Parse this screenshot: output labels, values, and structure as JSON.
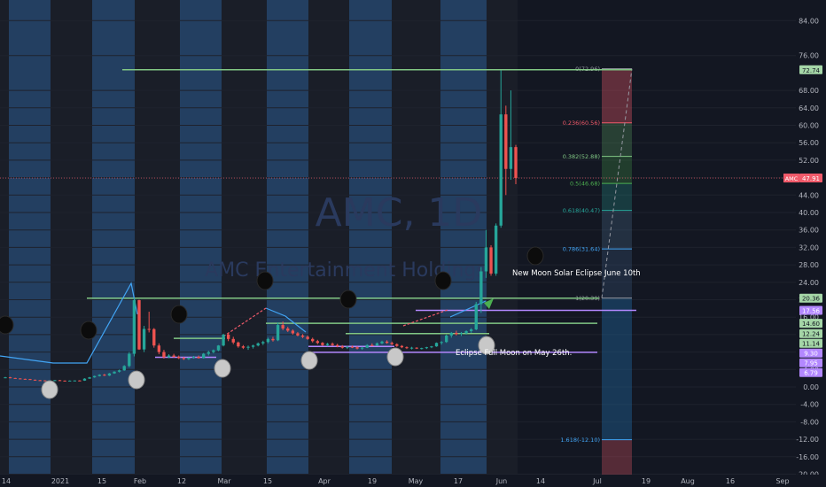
{
  "chart_data": {
    "type": "candlestick",
    "watermark": {
      "ticker": "AMC, 1D",
      "name": "AMC Entertainment Holdings"
    },
    "y_axis": {
      "ticks": [
        "84.00",
        "76.00",
        "68.00",
        "64.00",
        "60.00",
        "56.00",
        "52.00",
        "48.00",
        "44.00",
        "40.00",
        "36.00",
        "32.00",
        "28.00",
        "24.00",
        "20.00",
        "16.00",
        "12.00",
        "8.00",
        "4.00",
        "0.00",
        "-4.00",
        "-8.00",
        "-12.00",
        "-16.00",
        "-20.00"
      ],
      "ylim": [
        -22,
        86
      ]
    },
    "x_axis": {
      "ticks": [
        "14",
        "2021",
        "15",
        "Feb",
        "12",
        "Mar",
        "15",
        "Apr",
        "19",
        "May",
        "17",
        "Jun",
        "14",
        "Jul",
        "19",
        "Aug",
        "16",
        "Sep"
      ]
    },
    "price_badges": [
      {
        "label": "72.74",
        "value": 72.74,
        "color": "#a5d6a7",
        "text_color": "#131722"
      },
      {
        "label": "47.91",
        "value": 47.91,
        "color": "#f05a6a",
        "text_color": "#ffffff"
      },
      {
        "label": "20.36",
        "value": 20.36,
        "color": "#a5d6a7",
        "text_color": "#131722"
      },
      {
        "label": "17.56",
        "value": 17.56,
        "color": "#b388ff",
        "text_color": "#ffffff"
      },
      {
        "label": "14.60",
        "value": 14.6,
        "color": "#a5d6a7",
        "text_color": "#131722"
      },
      {
        "label": "12.24",
        "value": 12.24,
        "color": "#a5d6a7",
        "text_color": "#131722"
      },
      {
        "label": "11.14",
        "value": 11.14,
        "color": "#a5d6a7",
        "text_color": "#131722"
      },
      {
        "label": "9.30",
        "value": 9.3,
        "color": "#b388ff",
        "text_color": "#ffffff"
      },
      {
        "label": "7.95",
        "value": 7.95,
        "color": "#b388ff",
        "text_color": "#ffffff"
      },
      {
        "label": "6.79",
        "value": 6.79,
        "color": "#b388ff",
        "text_color": "#ffffff"
      }
    ],
    "symbol_tag": "AMC",
    "fib_levels": [
      {
        "label": "0(72.96)",
        "value": 72.96,
        "color": "#9598a1"
      },
      {
        "label": "0.236(60.56)",
        "value": 60.56,
        "color": "#f05a6a"
      },
      {
        "label": "0.382(52.88)",
        "value": 52.88,
        "color": "#81c784"
      },
      {
        "label": "0.5(46.68)",
        "value": 46.68,
        "color": "#4caf50"
      },
      {
        "label": "0.618(40.47)",
        "value": 40.47,
        "color": "#26a69a"
      },
      {
        "label": "0.786(31.64)",
        "value": 31.64,
        "color": "#42a5f5"
      },
      {
        "label": "1(20.39)",
        "value": 20.39,
        "color": "#9598a1"
      },
      {
        "label": "1.618(-12.10)",
        "value": -12.1,
        "color": "#42a5f5"
      }
    ],
    "annotations": [
      {
        "text": "New Moon Solar Eclipse June 10th"
      },
      {
        "text": "Eclipse Full Moon on May 26th."
      }
    ],
    "horizontal_levels": [
      {
        "value": 72.74,
        "color": "#81c784"
      },
      {
        "value": 20.36,
        "color": "#81c784"
      },
      {
        "value": 17.56,
        "color": "#b388ff"
      },
      {
        "value": 14.6,
        "color": "#81c784"
      },
      {
        "value": 12.24,
        "color": "#81c784"
      },
      {
        "value": 11.14,
        "color": "#81c784"
      },
      {
        "value": 9.3,
        "color": "#b388ff"
      },
      {
        "value": 7.95,
        "color": "#b388ff"
      },
      {
        "value": 6.79,
        "color": "#b388ff"
      }
    ],
    "last_price": 47.91,
    "candles": [
      {
        "o": 2.1,
        "h": 2.3,
        "l": 2.0,
        "c": 2.2
      },
      {
        "o": 2.2,
        "h": 2.3,
        "l": 2.0,
        "c": 2.05
      },
      {
        "o": 2.05,
        "h": 2.1,
        "l": 1.9,
        "c": 1.95
      },
      {
        "o": 1.95,
        "h": 2.0,
        "l": 1.8,
        "c": 1.85
      },
      {
        "o": 1.85,
        "h": 1.9,
        "l": 1.7,
        "c": 1.8
      },
      {
        "o": 1.8,
        "h": 1.85,
        "l": 1.6,
        "c": 1.65
      },
      {
        "o": 1.65,
        "h": 1.7,
        "l": 1.5,
        "c": 1.55
      },
      {
        "o": 1.55,
        "h": 1.6,
        "l": 1.45,
        "c": 1.5
      },
      {
        "o": 1.5,
        "h": 1.55,
        "l": 1.4,
        "c": 1.45
      },
      {
        "o": 1.45,
        "h": 1.55,
        "l": 1.4,
        "c": 1.5
      },
      {
        "o": 1.5,
        "h": 1.6,
        "l": 1.45,
        "c": 1.55
      },
      {
        "o": 1.55,
        "h": 1.6,
        "l": 1.4,
        "c": 1.45
      },
      {
        "o": 1.45,
        "h": 1.5,
        "l": 1.35,
        "c": 1.4
      },
      {
        "o": 1.4,
        "h": 1.5,
        "l": 1.35,
        "c": 1.45
      },
      {
        "o": 1.45,
        "h": 1.5,
        "l": 1.4,
        "c": 1.48
      },
      {
        "o": 1.48,
        "h": 1.55,
        "l": 1.4,
        "c": 1.45
      },
      {
        "o": 1.45,
        "h": 2.0,
        "l": 1.4,
        "c": 1.9
      },
      {
        "o": 1.9,
        "h": 2.3,
        "l": 1.85,
        "c": 2.2
      },
      {
        "o": 2.2,
        "h": 2.6,
        "l": 2.1,
        "c": 2.5
      },
      {
        "o": 2.5,
        "h": 2.9,
        "l": 2.4,
        "c": 2.8
      },
      {
        "o": 2.8,
        "h": 3.0,
        "l": 2.5,
        "c": 2.6
      },
      {
        "o": 2.6,
        "h": 3.2,
        "l": 2.5,
        "c": 3.1
      },
      {
        "o": 3.1,
        "h": 3.6,
        "l": 3.0,
        "c": 3.5
      },
      {
        "o": 3.5,
        "h": 4.0,
        "l": 3.3,
        "c": 3.8
      },
      {
        "o": 3.8,
        "h": 5.0,
        "l": 3.7,
        "c": 4.8
      },
      {
        "o": 4.8,
        "h": 8.0,
        "l": 4.5,
        "c": 7.6
      },
      {
        "o": 7.6,
        "h": 20.36,
        "l": 7.0,
        "c": 19.9
      },
      {
        "o": 19.9,
        "h": 20.0,
        "l": 8.5,
        "c": 8.6
      },
      {
        "o": 8.6,
        "h": 14.0,
        "l": 8.0,
        "c": 13.3
      },
      {
        "o": 13.3,
        "h": 17.25,
        "l": 12.5,
        "c": 13.26
      },
      {
        "o": 13.26,
        "h": 13.5,
        "l": 9.0,
        "c": 9.5
      },
      {
        "o": 9.5,
        "h": 10.0,
        "l": 7.5,
        "c": 8.0
      },
      {
        "o": 8.0,
        "h": 8.5,
        "l": 6.5,
        "c": 6.8
      },
      {
        "o": 6.8,
        "h": 7.5,
        "l": 6.6,
        "c": 7.2
      },
      {
        "o": 7.2,
        "h": 7.6,
        "l": 6.7,
        "c": 6.9
      },
      {
        "o": 6.9,
        "h": 7.2,
        "l": 6.4,
        "c": 6.6
      },
      {
        "o": 6.6,
        "h": 6.9,
        "l": 6.2,
        "c": 6.4
      },
      {
        "o": 6.4,
        "h": 6.8,
        "l": 6.2,
        "c": 6.7
      },
      {
        "o": 6.7,
        "h": 7.1,
        "l": 6.5,
        "c": 6.9
      },
      {
        "o": 6.9,
        "h": 7.2,
        "l": 6.5,
        "c": 6.6
      },
      {
        "o": 6.6,
        "h": 7.8,
        "l": 6.5,
        "c": 7.6
      },
      {
        "o": 7.6,
        "h": 8.3,
        "l": 7.2,
        "c": 8.0
      },
      {
        "o": 8.0,
        "h": 8.6,
        "l": 7.7,
        "c": 8.4
      },
      {
        "o": 8.4,
        "h": 9.6,
        "l": 8.2,
        "c": 9.5
      },
      {
        "o": 9.5,
        "h": 12.2,
        "l": 9.3,
        "c": 12.0
      },
      {
        "o": 12.0,
        "h": 12.5,
        "l": 10.5,
        "c": 11.0
      },
      {
        "o": 11.0,
        "h": 11.5,
        "l": 9.8,
        "c": 10.2
      },
      {
        "o": 10.2,
        "h": 10.4,
        "l": 9.0,
        "c": 9.3
      },
      {
        "o": 9.3,
        "h": 9.6,
        "l": 8.7,
        "c": 9.0
      },
      {
        "o": 9.0,
        "h": 9.5,
        "l": 8.5,
        "c": 9.2
      },
      {
        "o": 9.2,
        "h": 9.7,
        "l": 8.8,
        "c": 9.5
      },
      {
        "o": 9.5,
        "h": 10.2,
        "l": 9.3,
        "c": 10.0
      },
      {
        "o": 10.0,
        "h": 10.6,
        "l": 9.6,
        "c": 10.3
      },
      {
        "o": 10.3,
        "h": 11.3,
        "l": 10.0,
        "c": 11.0
      },
      {
        "o": 11.0,
        "h": 11.5,
        "l": 10.4,
        "c": 10.7
      },
      {
        "o": 10.7,
        "h": 14.8,
        "l": 10.5,
        "c": 14.2
      },
      {
        "o": 14.2,
        "h": 15.0,
        "l": 13.0,
        "c": 13.4
      },
      {
        "o": 13.4,
        "h": 13.8,
        "l": 12.6,
        "c": 12.9
      },
      {
        "o": 12.9,
        "h": 13.2,
        "l": 12.0,
        "c": 12.3
      },
      {
        "o": 12.3,
        "h": 12.6,
        "l": 11.6,
        "c": 11.8
      },
      {
        "o": 11.8,
        "h": 12.1,
        "l": 11.2,
        "c": 11.5
      },
      {
        "o": 11.5,
        "h": 11.8,
        "l": 10.8,
        "c": 11.0
      },
      {
        "o": 11.0,
        "h": 11.3,
        "l": 10.2,
        "c": 10.5
      },
      {
        "o": 10.5,
        "h": 10.8,
        "l": 9.8,
        "c": 10.1
      },
      {
        "o": 10.1,
        "h": 10.3,
        "l": 9.4,
        "c": 9.6
      },
      {
        "o": 9.6,
        "h": 10.1,
        "l": 9.3,
        "c": 9.9
      },
      {
        "o": 9.9,
        "h": 10.2,
        "l": 9.4,
        "c": 9.6
      },
      {
        "o": 9.6,
        "h": 9.9,
        "l": 9.1,
        "c": 9.3
      },
      {
        "o": 9.3,
        "h": 9.6,
        "l": 8.8,
        "c": 9.0
      },
      {
        "o": 9.0,
        "h": 9.4,
        "l": 8.7,
        "c": 9.2
      },
      {
        "o": 9.2,
        "h": 9.5,
        "l": 8.9,
        "c": 9.1
      },
      {
        "o": 9.1,
        "h": 9.3,
        "l": 8.6,
        "c": 8.8
      },
      {
        "o": 8.8,
        "h": 9.2,
        "l": 8.5,
        "c": 9.0
      },
      {
        "o": 9.0,
        "h": 9.8,
        "l": 8.9,
        "c": 9.6
      },
      {
        "o": 9.6,
        "h": 10.0,
        "l": 9.3,
        "c": 9.5
      },
      {
        "o": 9.5,
        "h": 10.2,
        "l": 9.4,
        "c": 10.0
      },
      {
        "o": 10.0,
        "h": 10.6,
        "l": 9.8,
        "c": 10.4
      },
      {
        "o": 10.4,
        "h": 10.7,
        "l": 9.9,
        "c": 10.1
      },
      {
        "o": 10.1,
        "h": 10.4,
        "l": 9.6,
        "c": 9.8
      },
      {
        "o": 9.8,
        "h": 10.0,
        "l": 9.2,
        "c": 9.4
      },
      {
        "o": 9.4,
        "h": 9.6,
        "l": 8.9,
        "c": 9.1
      },
      {
        "o": 9.1,
        "h": 9.3,
        "l": 8.7,
        "c": 8.9
      },
      {
        "o": 8.9,
        "h": 9.2,
        "l": 8.6,
        "c": 9.0
      },
      {
        "o": 9.0,
        "h": 9.1,
        "l": 8.7,
        "c": 8.8
      },
      {
        "o": 8.8,
        "h": 9.0,
        "l": 8.6,
        "c": 8.9
      },
      {
        "o": 8.9,
        "h": 9.2,
        "l": 8.7,
        "c": 9.1
      },
      {
        "o": 9.1,
        "h": 9.4,
        "l": 8.9,
        "c": 9.3
      },
      {
        "o": 9.3,
        "h": 10.2,
        "l": 9.2,
        "c": 10.1
      },
      {
        "o": 10.1,
        "h": 10.5,
        "l": 9.7,
        "c": 10.3
      },
      {
        "o": 10.3,
        "h": 12.0,
        "l": 10.1,
        "c": 11.8
      },
      {
        "o": 11.8,
        "h": 12.6,
        "l": 11.3,
        "c": 12.4
      },
      {
        "o": 12.4,
        "h": 12.9,
        "l": 11.8,
        "c": 12.1
      },
      {
        "o": 12.1,
        "h": 12.6,
        "l": 11.7,
        "c": 12.3
      },
      {
        "o": 12.3,
        "h": 13.0,
        "l": 12.0,
        "c": 12.8
      },
      {
        "o": 12.8,
        "h": 13.5,
        "l": 12.4,
        "c": 13.2
      },
      {
        "o": 13.2,
        "h": 19.5,
        "l": 13.0,
        "c": 19.0
      },
      {
        "o": 19.0,
        "h": 27.5,
        "l": 17.0,
        "c": 26.5
      },
      {
        "o": 26.5,
        "h": 36.0,
        "l": 25.0,
        "c": 32.0
      },
      {
        "o": 32.0,
        "h": 32.5,
        "l": 25.5,
        "c": 26.0
      },
      {
        "o": 26.0,
        "h": 37.5,
        "l": 25.5,
        "c": 37.0
      },
      {
        "o": 37.0,
        "h": 72.62,
        "l": 36.5,
        "c": 62.5
      },
      {
        "o": 62.5,
        "h": 64.5,
        "l": 44.0,
        "c": 50.0
      },
      {
        "o": 50.0,
        "h": 68.0,
        "l": 47.5,
        "c": 55.0
      },
      {
        "o": 55.0,
        "h": 55.5,
        "l": 46.5,
        "c": 47.91
      }
    ]
  }
}
